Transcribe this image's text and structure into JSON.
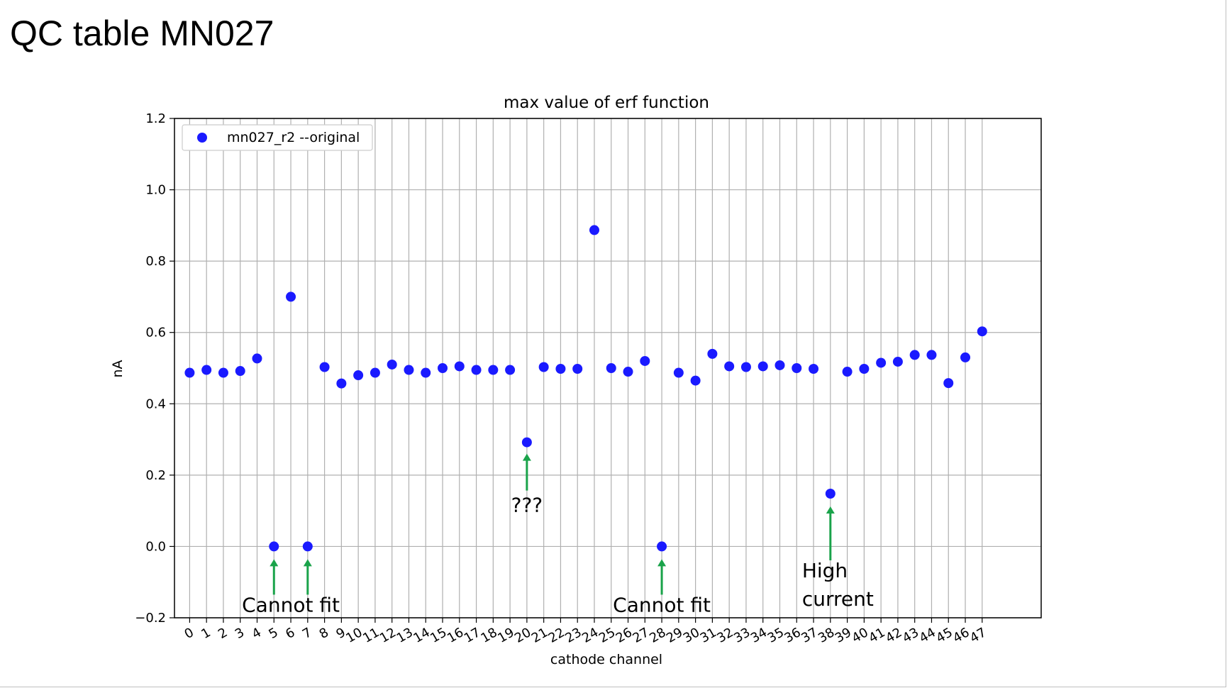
{
  "slide": {
    "title": "QC table MN027"
  },
  "colors": {
    "points": "#1a1aff",
    "annotation_arrow": "#1aa34a",
    "grid": "#b0b0b0"
  },
  "chart_data": {
    "type": "scatter",
    "title": "max value of erf function",
    "xlabel": "cathode channel",
    "ylabel": "nA",
    "xlim": [
      -0.9,
      50.5
    ],
    "ylim": [
      -0.2,
      1.2
    ],
    "xticks": [
      0,
      1,
      2,
      3,
      4,
      5,
      6,
      7,
      8,
      9,
      10,
      11,
      12,
      13,
      14,
      15,
      16,
      17,
      18,
      19,
      20,
      21,
      22,
      23,
      24,
      25,
      26,
      27,
      28,
      29,
      30,
      31,
      32,
      33,
      34,
      35,
      36,
      37,
      38,
      39,
      40,
      41,
      42,
      43,
      44,
      45,
      46,
      47
    ],
    "yticks": [
      -0.2,
      0.0,
      0.2,
      0.4,
      0.6,
      0.8,
      1.0,
      1.2
    ],
    "ytick_labels": [
      "−0.2",
      "0.0",
      "0.2",
      "0.4",
      "0.6",
      "0.8",
      "1.0",
      "1.2"
    ],
    "grid": true,
    "legend_position": "top-left",
    "series": [
      {
        "name": "mn027_r2 --original",
        "x": [
          0,
          1,
          2,
          3,
          4,
          5,
          6,
          7,
          8,
          9,
          10,
          11,
          12,
          13,
          14,
          15,
          16,
          17,
          18,
          19,
          20,
          21,
          22,
          23,
          24,
          25,
          26,
          27,
          28,
          29,
          30,
          31,
          32,
          33,
          34,
          35,
          36,
          37,
          38,
          39,
          40,
          41,
          42,
          43,
          44,
          45,
          46,
          47
        ],
        "y": [
          0.487,
          0.495,
          0.487,
          0.492,
          0.527,
          0.0,
          0.7,
          0.0,
          0.503,
          0.457,
          0.48,
          0.487,
          0.51,
          0.495,
          0.487,
          0.5,
          0.505,
          0.495,
          0.495,
          0.495,
          0.292,
          0.503,
          0.498,
          0.498,
          0.887,
          0.5,
          0.49,
          0.52,
          0.0,
          0.487,
          0.465,
          0.54,
          0.505,
          0.503,
          0.505,
          0.508,
          0.5,
          0.498,
          0.148,
          0.49,
          0.498,
          0.515,
          0.518,
          0.537,
          0.537,
          0.458,
          0.53,
          0.603
        ]
      }
    ],
    "annotations": [
      {
        "text": "Cannot fit",
        "points": [
          5,
          7
        ]
      },
      {
        "text": "???",
        "points": [
          20
        ]
      },
      {
        "text": "Cannot fit",
        "points": [
          28
        ]
      },
      {
        "text": "High\ncurrent",
        "points": [
          38
        ]
      }
    ]
  }
}
